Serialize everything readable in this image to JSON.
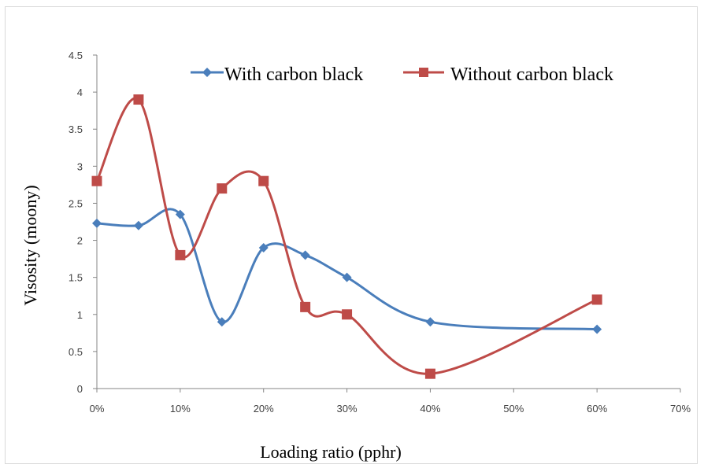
{
  "chart_data": {
    "type": "line",
    "title": "",
    "xlabel": "Loading ratio (pphr)",
    "ylabel": "Visosity (moony)",
    "x_ticks": [
      "0%",
      "10%",
      "20%",
      "30%",
      "40%",
      "50%",
      "60%",
      "70%"
    ],
    "x_tick_values": [
      0,
      10,
      20,
      30,
      40,
      50,
      60,
      70
    ],
    "y_ticks": [
      "0",
      "0.5",
      "1",
      "1.5",
      "2",
      "2.5",
      "3",
      "3.5",
      "4",
      "4.5"
    ],
    "y_tick_values": [
      0,
      0.5,
      1,
      1.5,
      2,
      2.5,
      3,
      3.5,
      4,
      4.5
    ],
    "xlim": [
      0,
      70
    ],
    "ylim": [
      0,
      4.5
    ],
    "grid": false,
    "smooth": true,
    "legend_position": "top",
    "series": [
      {
        "name": "With carbon black",
        "color": "#4a7ebb",
        "marker": "diamond",
        "x": [
          0,
          5,
          10,
          15,
          20,
          25,
          30,
          40,
          60
        ],
        "y": [
          2.23,
          2.2,
          2.35,
          0.9,
          1.9,
          1.8,
          1.5,
          0.9,
          0.8
        ]
      },
      {
        "name": "Without carbon black",
        "color": "#be4b48",
        "marker": "square",
        "x": [
          0,
          5,
          10,
          15,
          20,
          25,
          30,
          40,
          60
        ],
        "y": [
          2.8,
          3.9,
          1.8,
          2.7,
          2.8,
          1.1,
          1.0,
          0.2,
          1.2
        ]
      }
    ]
  }
}
